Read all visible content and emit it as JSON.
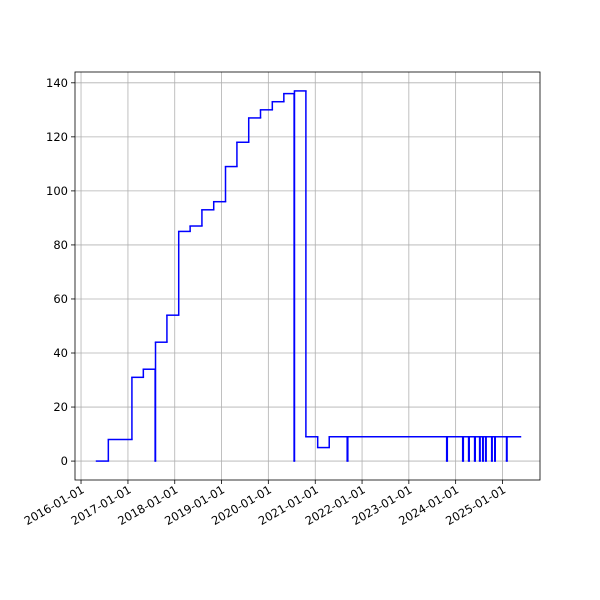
{
  "chart_data": {
    "type": "step",
    "x": [
      "2016-05-01",
      "2016-08-01",
      "2017-02-01",
      "2017-05-01",
      "2017-08-01",
      "2017-08-04",
      "2017-11-01",
      "2018-02-01",
      "2018-05-01",
      "2018-08-01",
      "2018-11-01",
      "2019-02-01",
      "2019-05-01",
      "2019-08-01",
      "2019-11-01",
      "2020-02-01",
      "2020-05-01",
      "2020-07-20",
      "2020-07-23",
      "2020-10-20",
      "2021-01-20",
      "2021-04-20",
      "2021-09-07",
      "2021-09-12",
      "2023-10-23",
      "2023-10-28",
      "2024-02-25",
      "2024-03-01",
      "2024-04-11",
      "2024-04-16",
      "2024-05-28",
      "2024-06-02",
      "2024-07-06",
      "2024-07-10",
      "2024-07-30",
      "2024-08-03",
      "2024-08-22",
      "2024-08-26",
      "2024-10-08",
      "2024-10-12",
      "2024-11-01",
      "2024-11-05",
      "2025-02-01",
      "2025-02-05",
      "2025-05-20"
    ],
    "values": [
      0,
      8,
      31,
      34,
      0,
      44,
      54,
      85,
      87,
      93,
      96,
      109,
      118,
      127,
      130,
      133,
      136,
      0,
      137,
      9,
      5,
      9,
      0,
      9,
      0,
      9,
      0,
      9,
      0,
      9,
      0,
      9,
      0,
      9,
      0,
      9,
      0,
      9,
      0,
      9,
      0,
      9,
      0,
      9,
      9
    ],
    "color": "#0000ff",
    "xlim": [
      "2015-11-15",
      "2025-10-20"
    ],
    "xticks": [
      "2016-01-01",
      "2017-01-01",
      "2018-01-01",
      "2019-01-01",
      "2020-01-01",
      "2021-01-01",
      "2022-01-01",
      "2023-01-01",
      "2024-01-01",
      "2025-01-01"
    ],
    "ylim": [
      -7,
      144
    ],
    "yticks": [
      0,
      20,
      40,
      60,
      80,
      100,
      120,
      140
    ],
    "grid": true
  }
}
